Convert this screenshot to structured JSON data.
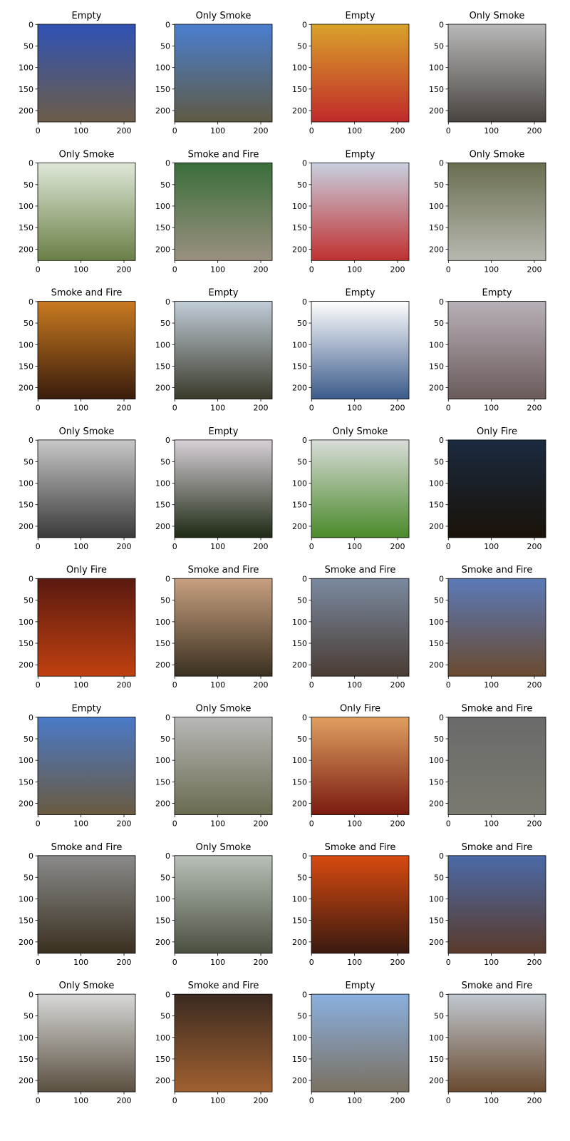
{
  "chart_data": {
    "type": "image-grid",
    "xlim": [
      -0.5,
      226.5
    ],
    "ylim": [
      226.5,
      -0.5
    ],
    "xticks": [
      0,
      100,
      200
    ],
    "yticks": [
      0,
      50,
      100,
      150,
      200
    ],
    "panels": [
      {
        "title": "Empty",
        "colors": [
          "#2f52b5",
          "#6d5d48"
        ]
      },
      {
        "title": "Only Smoke",
        "colors": [
          "#4a7fd0",
          "#5f5a44"
        ]
      },
      {
        "title": "Empty",
        "colors": [
          "#d9a22a",
          "#c02a2a"
        ]
      },
      {
        "title": "Only Smoke",
        "colors": [
          "#b8b8b8",
          "#4a4440"
        ]
      },
      {
        "title": "Only Smoke",
        "colors": [
          "#dfe8d8",
          "#6a7f46"
        ]
      },
      {
        "title": "Smoke and Fire",
        "colors": [
          "#3a6e3a",
          "#9a9080"
        ]
      },
      {
        "title": "Empty",
        "colors": [
          "#c8d0e0",
          "#c03030"
        ]
      },
      {
        "title": "Only Smoke",
        "colors": [
          "#6a6e50",
          "#b8b8b0"
        ]
      },
      {
        "title": "Smoke and Fire",
        "colors": [
          "#c87a20",
          "#3a1c0c"
        ]
      },
      {
        "title": "Empty",
        "colors": [
          "#c0ccd8",
          "#3a3a2a"
        ]
      },
      {
        "title": "Empty",
        "colors": [
          "#ffffff",
          "#3a5a8a"
        ]
      },
      {
        "title": "Empty",
        "colors": [
          "#b8b0b8",
          "#6a5a5a"
        ]
      },
      {
        "title": "Only Smoke",
        "colors": [
          "#c8c8c8",
          "#3a3a3a"
        ]
      },
      {
        "title": "Empty",
        "colors": [
          "#d8d0d8",
          "#1e2a14"
        ]
      },
      {
        "title": "Only Smoke",
        "colors": [
          "#d8dcd8",
          "#4a8a2a"
        ]
      },
      {
        "title": "Only Fire",
        "colors": [
          "#1a2a40",
          "#1a1208"
        ]
      },
      {
        "title": "Only Fire",
        "colors": [
          "#5a1a10",
          "#c04010"
        ]
      },
      {
        "title": "Smoke and Fire",
        "colors": [
          "#c8a080",
          "#3a3020"
        ]
      },
      {
        "title": "Smoke and Fire",
        "colors": [
          "#7a8aa0",
          "#4a3c34"
        ]
      },
      {
        "title": "Smoke and Fire",
        "colors": [
          "#5a7ab8",
          "#6a4a30"
        ]
      },
      {
        "title": "Empty",
        "colors": [
          "#4a7ac8",
          "#6a5a40"
        ]
      },
      {
        "title": "Only Smoke",
        "colors": [
          "#b8b8b8",
          "#6a6a50"
        ]
      },
      {
        "title": "Only Fire",
        "colors": [
          "#e0a060",
          "#7a1a10"
        ]
      },
      {
        "title": "Smoke and Fire",
        "colors": [
          "#6a6a6a",
          "#7a7a70"
        ]
      },
      {
        "title": "Smoke and Fire",
        "colors": [
          "#8a8a8a",
          "#3a3020"
        ]
      },
      {
        "title": "Only Smoke",
        "colors": [
          "#b8c0b8",
          "#4a5040"
        ]
      },
      {
        "title": "Smoke and Fire",
        "colors": [
          "#d84a10",
          "#3a1a10"
        ]
      },
      {
        "title": "Smoke and Fire",
        "colors": [
          "#4a6aa8",
          "#5a3a2a"
        ]
      },
      {
        "title": "Only Smoke",
        "colors": [
          "#d8d8d8",
          "#5a5040"
        ]
      },
      {
        "title": "Smoke and Fire",
        "colors": [
          "#3a2a20",
          "#a06030"
        ]
      },
      {
        "title": "Empty",
        "colors": [
          "#8ab0e0",
          "#7a7060"
        ]
      },
      {
        "title": "Smoke and Fire",
        "colors": [
          "#c0c8d0",
          "#6a4a30"
        ]
      }
    ]
  }
}
